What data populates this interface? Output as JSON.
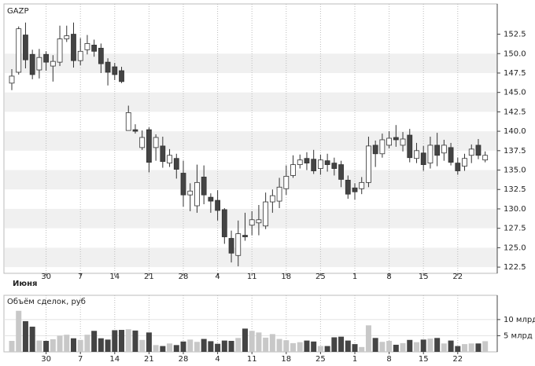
{
  "chart_data": [
    {
      "type": "candlestick",
      "title": "GAZP",
      "month_label": "Июня",
      "categories": [
        null,
        null,
        null,
        null,
        null,
        "30",
        null,
        null,
        null,
        null,
        "7",
        null,
        null,
        null,
        null,
        "14",
        null,
        null,
        null,
        null,
        "21",
        null,
        null,
        null,
        null,
        "28",
        null,
        null,
        null,
        null,
        "4",
        null,
        null,
        null,
        null,
        "11",
        null,
        null,
        null,
        null,
        "18",
        null,
        null,
        null,
        null,
        "25",
        null,
        null,
        null,
        null,
        "1",
        null,
        null,
        null,
        null,
        "8",
        null,
        null,
        null,
        null,
        "15",
        null,
        null,
        null,
        null,
        "22",
        null,
        null,
        null,
        null
      ],
      "open": [
        146.2,
        147.6,
        152.4,
        149.9,
        147.9,
        149.9,
        148.4,
        148.9,
        151.9,
        152.5,
        149.1,
        150.5,
        151.1,
        150.7,
        148.9,
        148.3,
        147.8,
        140.1,
        140.2,
        137.9,
        140.2,
        137.9,
        138.1,
        135.9,
        136.5,
        134.6,
        131.8,
        130.4,
        134.1,
        131.5,
        131.1,
        129.9,
        126.2,
        124.0,
        126.6,
        127.9,
        128.2,
        127.8,
        130.9,
        131.0,
        132.6,
        134.3,
        135.7,
        136.5,
        136.4,
        135.2,
        136.2,
        135.9,
        135.7,
        133.7,
        132.7,
        132.6,
        133.4,
        138.2,
        137.1,
        138.2,
        139.2,
        138.2,
        139.5,
        136.5,
        137.2,
        135.9,
        138.2,
        137.2,
        137.9,
        135.9,
        135.5,
        136.9,
        138.2,
        136.3
      ],
      "high": [
        148.0,
        153.5,
        154.0,
        150.5,
        150.6,
        150.3,
        149.8,
        153.6,
        153.6,
        154.0,
        152.0,
        152.4,
        151.8,
        151.3,
        149.4,
        148.8,
        148.3,
        143.3,
        140.9,
        140.1,
        140.5,
        139.6,
        139.3,
        137.7,
        137.1,
        136.2,
        133.3,
        135.7,
        135.6,
        132.0,
        132.4,
        130.1,
        127.2,
        128.5,
        129.5,
        129.7,
        130.5,
        132.1,
        132.5,
        134.0,
        135.6,
        136.9,
        137.0,
        137.3,
        137.6,
        137.0,
        137.1,
        136.6,
        136.2,
        134.3,
        133.3,
        134.1,
        139.3,
        138.8,
        139.7,
        140.0,
        140.8,
        139.9,
        140.3,
        138.5,
        138.1,
        139.3,
        139.8,
        138.9,
        138.5,
        136.6,
        137.1,
        138.3,
        139.0,
        137.4
      ],
      "low": [
        145.3,
        147.3,
        148.1,
        146.7,
        146.8,
        147.8,
        146.4,
        148.4,
        151.5,
        148.2,
        148.5,
        149.9,
        149.6,
        147.5,
        145.9,
        146.6,
        146.2,
        140.1,
        139.7,
        137.6,
        134.7,
        136.2,
        135.3,
        135.4,
        133.9,
        130.3,
        129.7,
        129.5,
        130.6,
        129.5,
        128.5,
        125.5,
        123.1,
        122.6,
        125.9,
        126.6,
        126.6,
        127.4,
        129.5,
        130.1,
        131.8,
        134.0,
        135.2,
        135.0,
        134.5,
        134.4,
        134.8,
        134.3,
        132.8,
        131.3,
        131.2,
        131.9,
        132.8,
        135.4,
        136.6,
        137.8,
        138.0,
        137.4,
        136.0,
        135.9,
        134.9,
        135.2,
        135.5,
        136.2,
        135.6,
        134.4,
        134.9,
        135.9,
        136.4,
        136.0
      ],
      "close": [
        147.1,
        153.2,
        149.2,
        147.3,
        149.5,
        148.9,
        149.0,
        151.9,
        152.3,
        149.1,
        150.3,
        151.3,
        150.3,
        148.7,
        147.6,
        147.3,
        146.4,
        142.4,
        140.0,
        139.2,
        136.0,
        139.2,
        136.1,
        136.9,
        135.1,
        131.8,
        132.3,
        133.4,
        131.8,
        131.0,
        129.8,
        126.4,
        124.3,
        126.8,
        126.4,
        128.6,
        128.6,
        130.9,
        131.7,
        132.8,
        134.2,
        135.7,
        136.3,
        135.9,
        134.9,
        136.3,
        135.7,
        135.2,
        133.8,
        131.9,
        132.2,
        133.4,
        138.1,
        137.1,
        138.9,
        139.1,
        138.9,
        139.0,
        136.6,
        137.5,
        135.7,
        138.2,
        136.9,
        138.2,
        136.0,
        134.9,
        136.5,
        137.7,
        136.9,
        136.9
      ],
      "up_color": "#ffffff",
      "down_color": "#444444",
      "edge_color": "#333333",
      "ylim": [
        121.7,
        156.4
      ],
      "yticks": [
        122.5,
        {
          "value": 125,
          "label": "125.0"
        },
        127.5,
        {
          "value": 130,
          "label": "130.0"
        },
        132.5,
        {
          "value": 135,
          "label": "135.0"
        },
        137.5,
        {
          "value": 140,
          "label": "140.0"
        },
        142.5,
        {
          "value": 145,
          "label": "145.0"
        },
        147.5,
        {
          "value": 150,
          "label": "150.0"
        },
        152.5
      ]
    },
    {
      "type": "bar",
      "title": "Объём сделок, руб",
      "categories": [
        null,
        null,
        null,
        null,
        null,
        "30",
        null,
        null,
        null,
        null,
        "7",
        null,
        null,
        null,
        null,
        "14",
        null,
        null,
        null,
        null,
        "21",
        null,
        null,
        null,
        null,
        "28",
        null,
        null,
        null,
        null,
        "4",
        null,
        null,
        null,
        null,
        "11",
        null,
        null,
        null,
        null,
        "18",
        null,
        null,
        null,
        null,
        "25",
        null,
        null,
        null,
        null,
        "1",
        null,
        null,
        null,
        null,
        "8",
        null,
        null,
        null,
        null,
        "15",
        null,
        null,
        null,
        null,
        "22",
        null,
        null,
        null,
        null
      ],
      "values": [
        3.4,
        12.7,
        9.5,
        7.8,
        3.5,
        3.4,
        3.9,
        5.0,
        5.3,
        4.2,
        3.7,
        5.3,
        6.5,
        4.2,
        3.8,
        6.7,
        6.8,
        7.0,
        6.6,
        3.7,
        6.0,
        2.1,
        1.8,
        2.6,
        2.1,
        3.2,
        3.8,
        3.1,
        4.0,
        3.3,
        2.5,
        3.5,
        3.4,
        4.3,
        7.2,
        6.5,
        6.0,
        4.4,
        5.5,
        4.0,
        3.6,
        2.7,
        3.0,
        3.5,
        3.2,
        1.8,
        1.8,
        4.5,
        4.7,
        3.5,
        2.4,
        1.5,
        8.2,
        4.3,
        3.1,
        3.4,
        2.2,
        2.7,
        3.7,
        3.0,
        3.8,
        4.1,
        4.3,
        2.6,
        3.5,
        1.8,
        2.4,
        2.6,
        2.6,
        3.3
      ],
      "up_color": "#c8c8c8",
      "down_color": "#444444",
      "ylim": [
        0,
        17.5
      ],
      "yticks": [
        {
          "value": 5,
          "label": "5 млрд"
        },
        {
          "value": 10,
          "label": "10 млрд"
        }
      ]
    }
  ]
}
